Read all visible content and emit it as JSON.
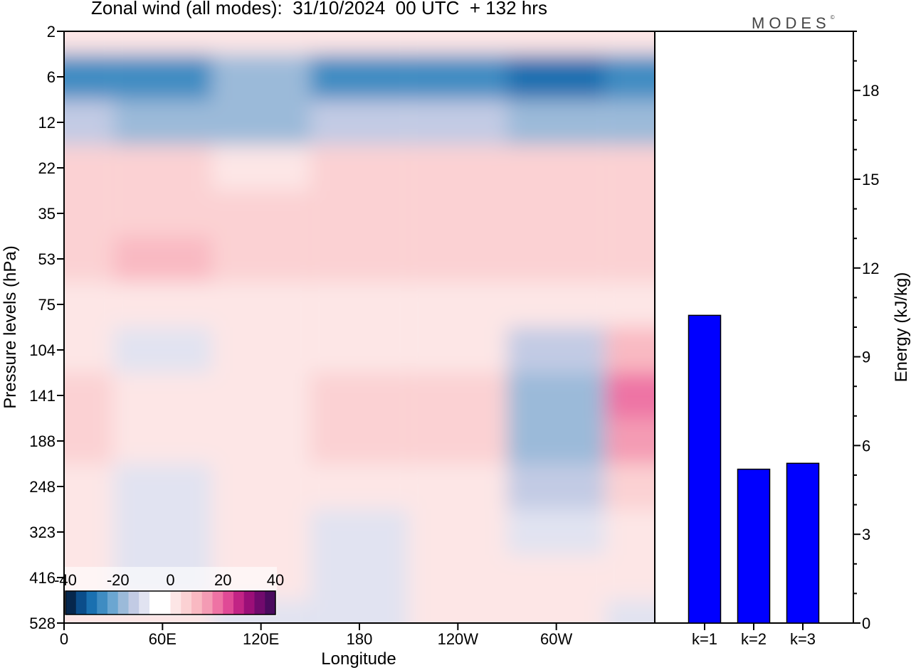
{
  "title": "Zonal wind (all modes):  31/10/2024  00 UTC  + 132 hrs",
  "logo": "MODES",
  "logo_mark": "©",
  "colors": {
    "negative_scale": [
      "#06274d",
      "#0b4d8a",
      "#1a70b0",
      "#3f8cc2",
      "#6ba6d1",
      "#9bbad9",
      "#c2cbe4",
      "#e1e3f1"
    ],
    "neutral": "#ffffff",
    "positive_scale": [
      "#fde6e6",
      "#fbd1d3",
      "#f9b9c2",
      "#f49bb4",
      "#ee73a4",
      "#e04a96",
      "#c22485",
      "#9b0f78",
      "#710a6d",
      "#4a0a5e"
    ],
    "bar_fill": "#0000ff"
  },
  "chart_data": [
    {
      "type": "heatmap",
      "title": "Zonal wind (all modes):  31/10/2024  00 UTC  + 132 hrs",
      "xlabel": "Longitude",
      "ylabel": "Pressure levels (hPa)",
      "x_ticks": [
        "0",
        "60E",
        "120E",
        "180",
        "120W",
        "60W"
      ],
      "y_ticks": [
        "2",
        "6",
        "12",
        "22",
        "35",
        "53",
        "75",
        "104",
        "141",
        "188",
        "248",
        "323",
        "416",
        "528"
      ],
      "colorbar": {
        "labels": [
          "-40",
          "-20",
          "0",
          "20",
          "40"
        ],
        "range": [
          -40,
          40
        ]
      },
      "x": [
        0,
        60,
        120,
        180,
        240,
        300,
        360
      ],
      "y": [
        "2",
        "6",
        "12",
        "22",
        "35",
        "53",
        "75",
        "104",
        "141",
        "188",
        "248",
        "323",
        "416",
        "528"
      ],
      "z": [
        [
          2,
          3,
          3,
          2,
          3,
          3,
          2
        ],
        [
          -20,
          -22,
          -14,
          -20,
          -20,
          -28,
          -24
        ],
        [
          -8,
          -12,
          -10,
          -6,
          -6,
          -10,
          -10
        ],
        [
          5,
          5,
          4,
          5,
          6,
          5,
          5
        ],
        [
          7,
          8,
          7,
          9,
          8,
          7,
          8
        ],
        [
          8,
          10,
          9,
          9,
          8,
          8,
          8
        ],
        [
          1,
          1,
          2,
          1,
          3,
          2,
          4
        ],
        [
          2,
          -2,
          2,
          4,
          4,
          -5,
          12
        ],
        [
          6,
          4,
          4,
          6,
          5,
          -14,
          20
        ],
        [
          8,
          2,
          3,
          5,
          5,
          -10,
          18
        ],
        [
          4,
          -2,
          2,
          4,
          4,
          -6,
          8
        ],
        [
          1,
          -3,
          1,
          -3,
          2,
          -3,
          2
        ],
        [
          1,
          -1,
          0,
          -4,
          1,
          0,
          1
        ],
        [
          0,
          0,
          -1,
          -2,
          0,
          0,
          -3
        ]
      ]
    },
    {
      "type": "bar",
      "ylabel": "Energy (kJ/kg)",
      "categories": [
        "k=1",
        "k=2",
        "k=3"
      ],
      "values": [
        10.4,
        5.2,
        5.4
      ],
      "ylim": [
        0,
        20
      ],
      "y_ticks": [
        "0",
        "3",
        "6",
        "9",
        "12",
        "15",
        "18"
      ]
    }
  ]
}
